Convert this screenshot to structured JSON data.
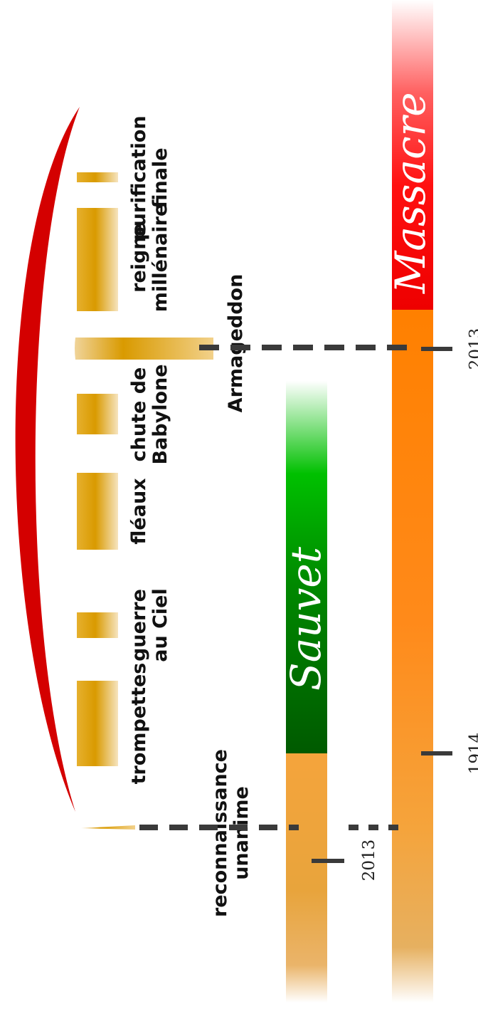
{
  "events": [
    {
      "id": "reconnaissance",
      "label_lines": [
        "reconnaissance",
        "unanime"
      ]
    },
    {
      "id": "trompettes",
      "label_lines": [
        "trompettes"
      ]
    },
    {
      "id": "guerre",
      "label_lines": [
        "guerre",
        "au Ciel"
      ]
    },
    {
      "id": "fleaux",
      "label_lines": [
        "fléaux"
      ]
    },
    {
      "id": "babylone",
      "label_lines": [
        "chute de",
        "Babylone"
      ]
    },
    {
      "id": "armageddon",
      "label_lines": [
        "Armageddon"
      ]
    },
    {
      "id": "reigne",
      "label_lines": [
        "reigne",
        "millénaire"
      ]
    },
    {
      "id": "purification",
      "label_lines": [
        "purification",
        "finale"
      ]
    }
  ],
  "bands": {
    "sauvet": {
      "title": "Sauvet",
      "marker": "2013"
    },
    "massacre": {
      "title": "Massacre",
      "markers": [
        "1914",
        "2013"
      ]
    }
  },
  "colors": {
    "arc": "#d40000",
    "event_gold": "#d99a00",
    "band_orange": "#ff8a1a",
    "band_gold": "#e0a030",
    "sauvet_green": "#006600",
    "massacre_red": "#ff0000"
  }
}
